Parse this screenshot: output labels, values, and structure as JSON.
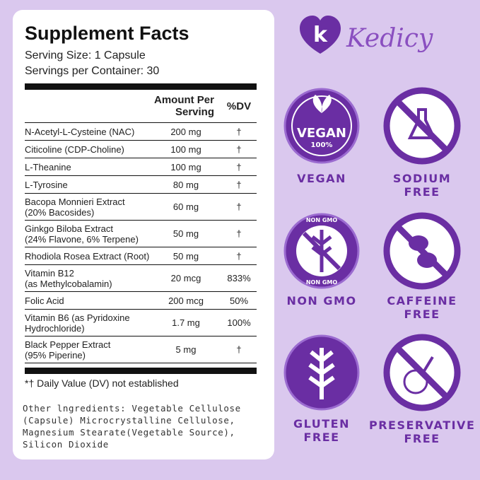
{
  "facts": {
    "title": "Supplement Facts",
    "serving_size": "Serving Size: 1 Capsule",
    "servings": "Servings per Container: 30",
    "header": [
      "Amount Per Serving",
      "%DV"
    ],
    "rows": [
      [
        "N-Acetyl-L-Cysteine (NAC)",
        "200 mg",
        "†"
      ],
      [
        "Citicoline (CDP-Choline)",
        "100 mg",
        "†"
      ],
      [
        "L-Theanine",
        "100 mg",
        "†"
      ],
      [
        "L-Tyrosine",
        "80 mg",
        "†"
      ],
      [
        "Bacopa Monnieri Extract\n(20% Bacosides)",
        "60 mg",
        "†"
      ],
      [
        "Ginkgo Biloba Extract\n(24% Flavone, 6% Terpene)",
        "50 mg",
        "†"
      ],
      [
        "Rhodiola Rosea Extract (Root)",
        "50 mg",
        "†"
      ],
      [
        "Vitamin B12\n(as Methylcobalamin)",
        "20 mcg",
        "833%"
      ],
      [
        "Folic Acid",
        "200 mcg",
        "50%"
      ],
      [
        "Vitamin B6 (as Pyridoxine\nHydrochloride)",
        "1.7 mg",
        "100%"
      ],
      [
        "Black Pepper Extract\n(95% Piperine)",
        "5 mg",
        "†"
      ]
    ],
    "footnote": "*† Daily Value (DV) not established",
    "other_ingredients": "Other lngredients: Vegetable Cellulose (Capsule) Microcrystalline Cellulose, Magnesium Stearate(Vegetable Source), Silicon Dioxide"
  },
  "brand": {
    "logo": "k",
    "name": "Kedicy"
  },
  "badges": [
    {
      "label": "VEGAN",
      "inner": "VEGAN",
      "inner_sub": "100%"
    },
    {
      "label": "SODIUM\nFREE"
    },
    {
      "label": "NON GMO",
      "inner": "NON GMO"
    },
    {
      "label": "CAFFEINE\nFREE"
    },
    {
      "label": "GLUTEN\nFREE"
    },
    {
      "label": "PRESERVATIVE\nFREE"
    }
  ]
}
